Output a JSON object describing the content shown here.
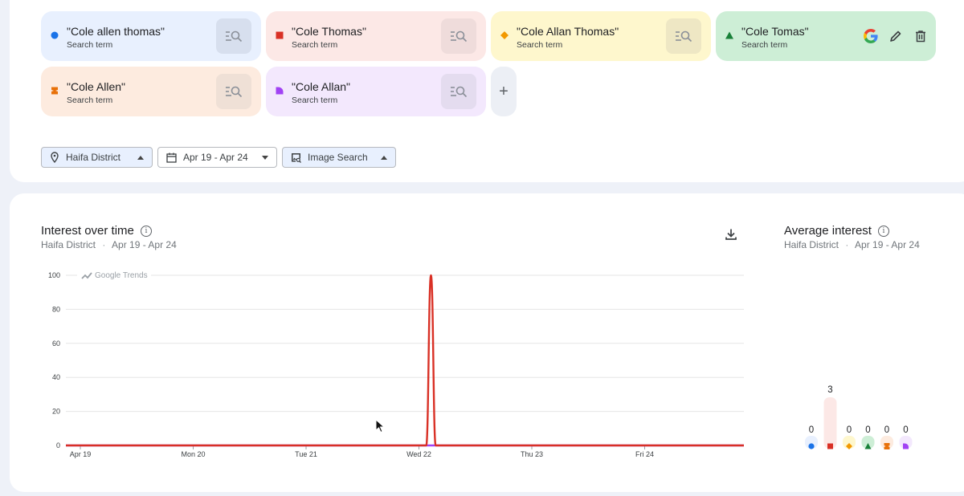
{
  "terms": [
    {
      "label": "\"Cole allen thomas\"",
      "sub": "Search term",
      "color": "#1a73e8",
      "bg": "#e8f0fe",
      "btn_bg": "#d7dfee",
      "shape": "circle-icon"
    },
    {
      "label": "\"Cole Thomas\"",
      "sub": "Search term",
      "color": "#d93025",
      "bg": "#fce8e6",
      "btn_bg": "#efdcdb",
      "shape": "square-icon"
    },
    {
      "label": "\"Cole Allan Thomas\"",
      "sub": "Search term",
      "color": "#f29900",
      "bg": "#fef7cd",
      "btn_bg": "#eee7c4",
      "shape": "diamond-icon"
    },
    {
      "label": "\"Cole Tomas\"",
      "sub": "Search term",
      "color": "#188038",
      "bg": "#cdeed6",
      "btn_bg": "#c0e0c9",
      "shape": "triangle-icon"
    },
    {
      "label": "\"Cole Allen\"",
      "sub": "Search term",
      "color": "#e8710a",
      "bg": "#fdebdf",
      "btn_bg": "#efe0d6",
      "shape": "hourglass-icon"
    },
    {
      "label": "\"Cole Allan\"",
      "sub": "Search term",
      "color": "#a142f4",
      "bg": "#f3e8fd",
      "btn_bg": "#e4dcef",
      "shape": "quarter-icon"
    }
  ],
  "filters": {
    "region": "Haifa District",
    "dates": "Apr 19 - Apr 24",
    "property": "Image Search"
  },
  "interest": {
    "title": "Interest over time",
    "sub_region": "Haifa District",
    "sub_dates": "Apr 19 - Apr 24",
    "watermark": "Google Trends"
  },
  "average": {
    "title": "Average interest",
    "sub_region": "Haifa District",
    "sub_dates": "Apr 19 - Apr 24",
    "values": [
      0,
      3,
      0,
      0,
      0,
      0
    ],
    "max": 3
  },
  "chart_data": {
    "type": "line",
    "x_ticks": [
      "Apr 19",
      "Mon 20",
      "Tue 21",
      "Wed 22",
      "Thu 23",
      "Fri 24"
    ],
    "yticks": [
      0,
      20,
      40,
      60,
      80,
      100
    ],
    "ylim": [
      0,
      100
    ],
    "series": [
      {
        "color": "#d93025",
        "values": [
          0,
          0,
          0,
          0,
          0,
          0,
          0,
          0,
          0,
          0,
          0,
          0,
          0,
          0,
          0,
          0,
          0,
          0,
          0,
          0,
          0,
          0,
          0,
          0,
          0,
          0,
          0,
          0,
          0,
          0,
          0,
          0,
          0,
          0,
          0,
          0,
          0,
          0,
          0,
          0,
          0,
          0,
          0,
          0,
          0,
          0,
          0,
          0,
          0,
          0,
          0,
          0,
          0,
          0,
          0,
          0,
          0,
          0,
          0,
          0,
          0,
          0,
          0,
          0,
          0,
          0,
          0,
          0,
          0,
          0,
          0,
          0,
          0,
          0,
          0,
          0,
          0,
          100,
          0,
          0,
          0,
          0,
          0,
          0,
          0,
          0,
          0,
          0,
          0,
          0,
          0,
          0,
          0,
          0,
          0,
          0,
          0,
          0,
          0,
          0,
          0,
          0,
          0,
          0,
          0,
          0,
          0,
          0,
          0,
          0,
          0,
          0,
          0,
          0,
          0,
          0,
          0,
          0,
          0,
          0,
          0,
          0,
          0,
          0,
          0,
          0,
          0,
          0,
          0,
          0,
          0,
          0,
          0,
          0,
          0,
          0,
          0,
          0,
          0,
          0,
          0,
          0,
          0,
          0
        ]
      },
      {
        "color": "#a142f4",
        "values": [
          0,
          0,
          0,
          0,
          0,
          0,
          0,
          0,
          0,
          0,
          0,
          0,
          0,
          0,
          0,
          0,
          0,
          0,
          0,
          0,
          0,
          0,
          0,
          0,
          0,
          0,
          0,
          0,
          0,
          0,
          0,
          0,
          0,
          0,
          0,
          0,
          0,
          0,
          0,
          0,
          0,
          0,
          0,
          0,
          0,
          0,
          0,
          0,
          0,
          0,
          0,
          0,
          0,
          0,
          0,
          0,
          0,
          0,
          0,
          0,
          0,
          0,
          0,
          0,
          0,
          0,
          0,
          0,
          0,
          0,
          0,
          0,
          0,
          0,
          0,
          0,
          0,
          0,
          0,
          0,
          0,
          0,
          0,
          0,
          0,
          0,
          0,
          0,
          0,
          0,
          0,
          0,
          0,
          0,
          0,
          0,
          0,
          0,
          0,
          0,
          0,
          0,
          0,
          0,
          0,
          0,
          0,
          0,
          0,
          0,
          0,
          0,
          0,
          0,
          0,
          0,
          0,
          0,
          0,
          0,
          0,
          0,
          0,
          0,
          0,
          0,
          0,
          0,
          0,
          0,
          0,
          0,
          0,
          0,
          0,
          0,
          0,
          0,
          0,
          0,
          0,
          0,
          0,
          0
        ]
      }
    ]
  }
}
